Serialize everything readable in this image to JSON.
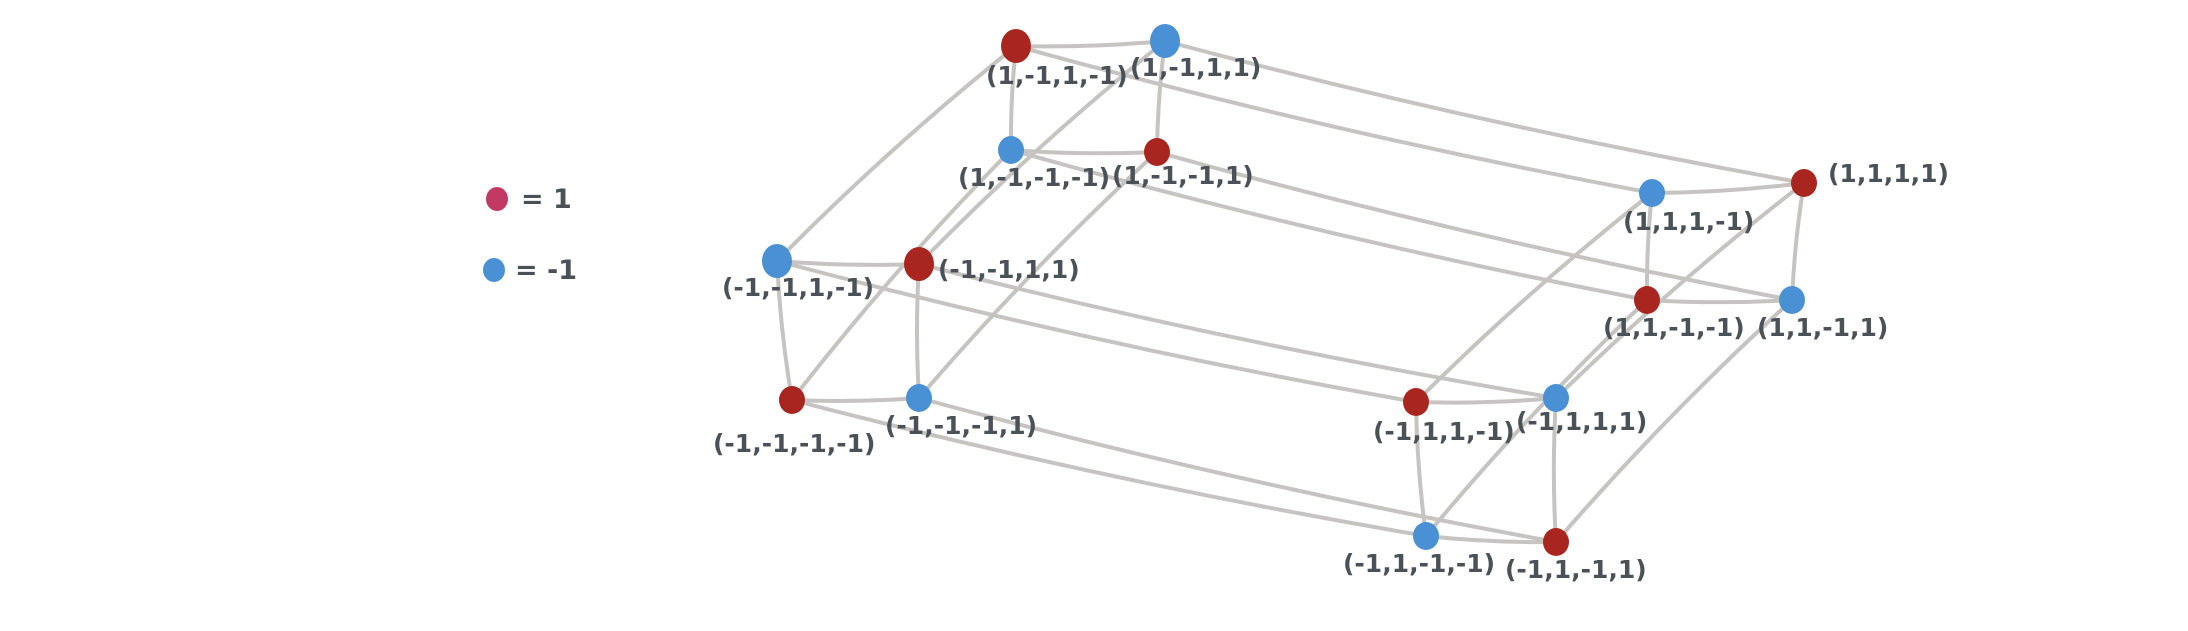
{
  "colors": {
    "positive": "#a8261f",
    "negative": "#4a90d4",
    "legend_positive": "#c23a63",
    "edge": "#c6c4c0",
    "text": "#4a5258"
  },
  "legend": [
    {
      "value": 1,
      "color": "#c23a63",
      "text": "= 1"
    },
    {
      "value": -1,
      "color": "#4a90d4",
      "text": "= -1"
    }
  ],
  "vertices": [
    {
      "id": "A",
      "coords": [
        1,
        -1,
        1,
        -1
      ],
      "sign": 1,
      "label": "(1,-1,1,-1)"
    },
    {
      "id": "B",
      "coords": [
        1,
        -1,
        1,
        1
      ],
      "sign": -1,
      "label": "(1,-1,1,1)"
    },
    {
      "id": "C",
      "coords": [
        1,
        -1,
        -1,
        -1
      ],
      "sign": -1,
      "label": "(1,-1,-1,-1)"
    },
    {
      "id": "D",
      "coords": [
        1,
        -1,
        -1,
        1
      ],
      "sign": 1,
      "label": "(1,-1,-1,1)"
    },
    {
      "id": "E",
      "coords": [
        -1,
        -1,
        1,
        -1
      ],
      "sign": -1,
      "label": "(-1,-1,1,-1)"
    },
    {
      "id": "F",
      "coords": [
        -1,
        -1,
        1,
        1
      ],
      "sign": 1,
      "label": "(-1,-1,1,1)"
    },
    {
      "id": "G",
      "coords": [
        -1,
        -1,
        -1,
        -1
      ],
      "sign": 1,
      "label": "(-1,-1,-1,-1)"
    },
    {
      "id": "H",
      "coords": [
        -1,
        -1,
        -1,
        1
      ],
      "sign": -1,
      "label": "(-1,-1,-1,1)"
    },
    {
      "id": "I",
      "coords": [
        1,
        1,
        1,
        -1
      ],
      "sign": -1,
      "label": "(1,1,1,-1)"
    },
    {
      "id": "J",
      "coords": [
        1,
        1,
        1,
        1
      ],
      "sign": 1,
      "label": "(1,1,1,1)"
    },
    {
      "id": "K",
      "coords": [
        1,
        1,
        -1,
        -1
      ],
      "sign": 1,
      "label": "(1,1,-1,-1)"
    },
    {
      "id": "L",
      "coords": [
        1,
        1,
        -1,
        1
      ],
      "sign": -1,
      "label": "(1,1,-1,1)"
    },
    {
      "id": "M",
      "coords": [
        -1,
        1,
        1,
        -1
      ],
      "sign": 1,
      "label": "(-1,1,1,-1)"
    },
    {
      "id": "N",
      "coords": [
        -1,
        1,
        1,
        1
      ],
      "sign": -1,
      "label": "(-1,1,1,1)"
    },
    {
      "id": "O",
      "coords": [
        -1,
        1,
        -1,
        -1
      ],
      "sign": -1,
      "label": "(-1,1,-1,-1)"
    },
    {
      "id": "P",
      "coords": [
        -1,
        1,
        -1,
        1
      ],
      "sign": 1,
      "label": "(-1,1,-1,1)"
    }
  ]
}
